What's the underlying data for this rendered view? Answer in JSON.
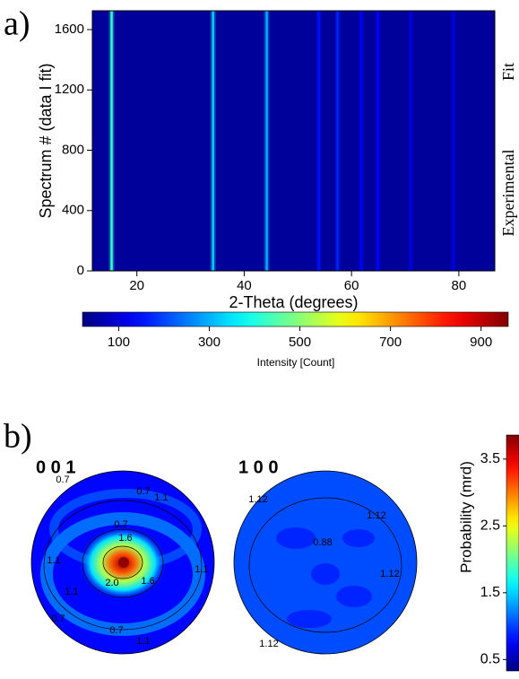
{
  "panels": {
    "a": "a)",
    "b": "b)"
  },
  "chart_data": [
    {
      "type": "heatmap",
      "x_label": "2-Theta (degrees)",
      "y_label": "Spectrum # (data I fit)",
      "xlim": [
        11.7,
        86.7
      ],
      "xticks": [
        20,
        40,
        60,
        80
      ],
      "ylim": [
        0,
        1725
      ],
      "yticks": [
        0,
        400,
        800,
        1200,
        1600
      ],
      "region_labels": [
        "Fit",
        "Experimental"
      ],
      "background": 45,
      "peaks": {
        "x": [
          15.3,
          34.2,
          44.2,
          53.9,
          57.4,
          61.8,
          64.9,
          71.0,
          79.0
        ],
        "values": [
          420,
          330,
          300,
          150,
          170,
          130,
          140,
          110,
          110
        ]
      },
      "colorbar": {
        "label": "Intensity [Count]",
        "lim": [
          20,
          960
        ],
        "ticks": [
          100,
          300,
          500,
          700,
          900
        ]
      }
    },
    {
      "type": "pole_figure",
      "titles": [
        "0 0 1",
        "1 0 0"
      ],
      "contour_labels": [
        [
          "0.7",
          "0.7",
          "1.1",
          "0.7",
          "1.6",
          "1.1",
          "2.0",
          "1.6",
          "1.1",
          "1.1",
          "0.7",
          "0.7",
          "1.1"
        ],
        [
          "1.12",
          "1.12",
          "0.88",
          "1.12",
          "1.12"
        ]
      ],
      "colorbar": {
        "label": "Probability (mrd)",
        "lim": [
          0.33,
          3.86
        ],
        "ticks": [
          0.5,
          1.5,
          2.5,
          3.5
        ]
      }
    }
  ]
}
